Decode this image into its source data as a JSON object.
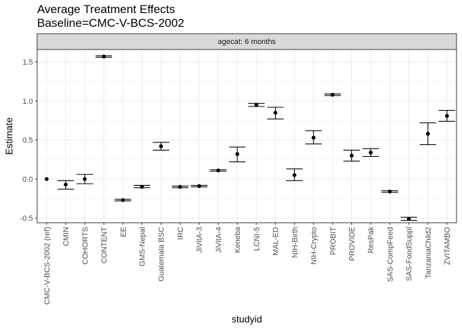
{
  "chart_data": {
    "type": "scatter",
    "title": "Average Treatment Effects",
    "subtitle": "Baseline=CMC-V-BCS-2002",
    "facet_label": "agecat: 6 months",
    "xlabel": "studyid",
    "ylabel": "Estimate",
    "ylim": [
      -0.56,
      1.66
    ],
    "yticks": [
      -0.5,
      0.0,
      0.5,
      1.0,
      1.5
    ],
    "ytick_labels": [
      "-0.5",
      "0.0",
      "0.5",
      "1.0",
      "1.5"
    ],
    "grid": true,
    "categories": [
      "CMC-V-BCS-2002 (ref)",
      "CMIN",
      "COHORTS",
      "CONTENT",
      "EE",
      "GMS-Nepal",
      "Guatemala BSC",
      "IRC",
      "JiVitA-3",
      "JiVitA-4",
      "Keneba",
      "LCNI-5",
      "MAL-ED",
      "NIH-Birth",
      "NIH-Crypto",
      "PROBIT",
      "PROVIDE",
      "ResPak",
      "SAS-CompFeed",
      "SAS-FoodSuppl",
      "TanzaniaChild2",
      "ZVITAMBO"
    ],
    "estimates": [
      0.0,
      -0.07,
      0.0,
      1.57,
      -0.27,
      -0.1,
      0.42,
      -0.1,
      -0.09,
      0.11,
      0.32,
      0.95,
      0.85,
      0.05,
      0.53,
      1.08,
      0.3,
      0.34,
      -0.16,
      -0.51,
      0.58,
      0.81
    ],
    "ci_lower": [
      null,
      -0.13,
      -0.06,
      1.56,
      -0.28,
      -0.11,
      0.37,
      -0.11,
      -0.1,
      0.1,
      0.22,
      0.93,
      0.77,
      -0.02,
      0.45,
      1.07,
      0.23,
      0.29,
      -0.17,
      -0.53,
      0.44,
      0.74
    ],
    "ci_upper": [
      null,
      -0.02,
      0.06,
      1.58,
      -0.26,
      -0.08,
      0.47,
      -0.09,
      -0.08,
      0.12,
      0.41,
      0.97,
      0.92,
      0.13,
      0.62,
      1.09,
      0.37,
      0.39,
      -0.15,
      -0.49,
      0.72,
      0.88
    ],
    "colors": {
      "panel_border": "#333333",
      "grid_major": "#ebebeb",
      "grid_minor": "#f5f5f5",
      "strip_fill": "#d9d9d9",
      "points": "#000000"
    }
  }
}
